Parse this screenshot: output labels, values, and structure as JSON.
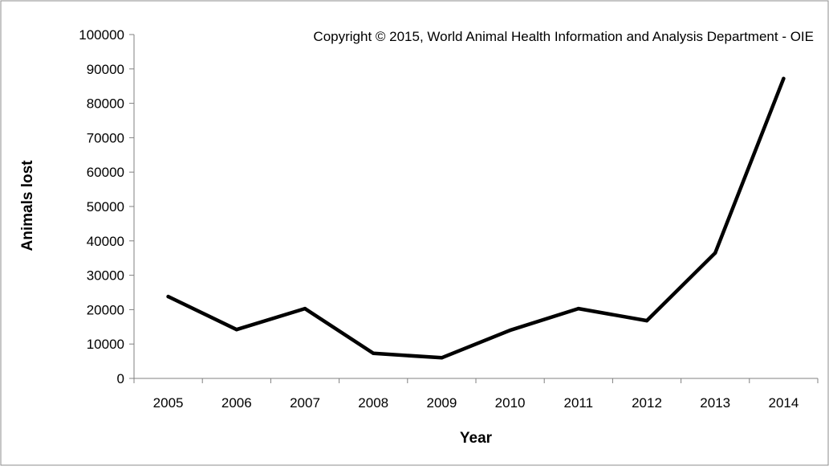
{
  "chart_data": {
    "type": "line",
    "title": "",
    "xlabel": "Year",
    "ylabel": "Animals lost",
    "categories": [
      "2005",
      "2006",
      "2007",
      "2008",
      "2009",
      "2010",
      "2011",
      "2012",
      "2013",
      "2014"
    ],
    "series": [
      {
        "values": [
          23800,
          14200,
          20300,
          7300,
          6000,
          14000,
          20300,
          16800,
          36500,
          87200
        ]
      }
    ],
    "ylim": [
      0,
      100000
    ],
    "yticks": [
      "0",
      "10000",
      "20000",
      "30000",
      "40000",
      "50000",
      "60000",
      "70000",
      "80000",
      "90000",
      "100000"
    ],
    "grid": false,
    "line_color": "#000000",
    "annotation": "Copyright © 2015, World Animal Health Information and Analysis Department - OIE"
  }
}
